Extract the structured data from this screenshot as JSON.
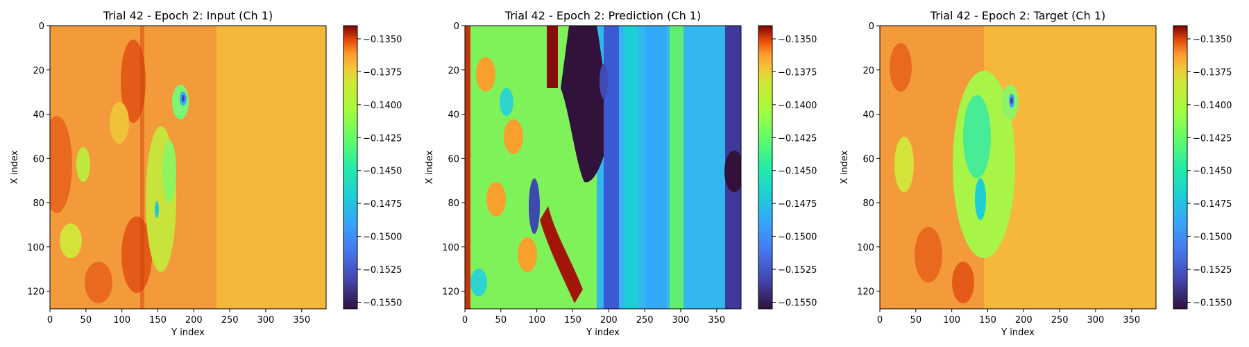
{
  "chart_data": [
    {
      "type": "heatmap",
      "title": "Trial 42 - Epoch 2: Input (Ch 1)",
      "xlabel": "Y index",
      "ylabel": "X index",
      "xlim": [
        0,
        384
      ],
      "ylim": [
        128,
        0
      ],
      "xticks": [
        "0",
        "50",
        "100",
        "150",
        "200",
        "250",
        "300",
        "350"
      ],
      "yticks": [
        "0",
        "20",
        "40",
        "60",
        "80",
        "100",
        "120"
      ],
      "colorbar": {
        "colormap": "turbo",
        "range": [
          -0.1555,
          -0.134
        ],
        "ticks": [
          "−0.1350",
          "−0.1375",
          "−0.1400",
          "−0.1425",
          "−0.1450",
          "−0.1475",
          "−0.1500",
          "−0.1525",
          "−0.1550"
        ]
      }
    },
    {
      "type": "heatmap",
      "title": "Trial 42 - Epoch 2: Prediction (Ch 1)",
      "xlabel": "Y index",
      "ylabel": "X index",
      "xlim": [
        0,
        384
      ],
      "ylim": [
        128,
        0
      ],
      "xticks": [
        "0",
        "50",
        "100",
        "150",
        "200",
        "250",
        "300",
        "350"
      ],
      "yticks": [
        "0",
        "20",
        "40",
        "60",
        "80",
        "100",
        "120"
      ],
      "colorbar": {
        "colormap": "turbo",
        "range": [
          -0.1555,
          -0.134
        ],
        "ticks": [
          "−0.1350",
          "−0.1375",
          "−0.1400",
          "−0.1425",
          "−0.1450",
          "−0.1475",
          "−0.1500",
          "−0.1525",
          "−0.1550"
        ]
      }
    },
    {
      "type": "heatmap",
      "title": "Trial 42 - Epoch 2: Target (Ch 1)",
      "xlabel": "Y index",
      "ylabel": "X index",
      "xlim": [
        0,
        384
      ],
      "ylim": [
        128,
        0
      ],
      "xticks": [
        "0",
        "50",
        "100",
        "150",
        "200",
        "250",
        "300",
        "350"
      ],
      "yticks": [
        "0",
        "20",
        "40",
        "60",
        "80",
        "100",
        "120"
      ],
      "colorbar": {
        "colormap": "turbo",
        "range": [
          -0.1555,
          -0.134
        ],
        "ticks": [
          "−0.1350",
          "−0.1375",
          "−0.1400",
          "−0.1425",
          "−0.1450",
          "−0.1475",
          "−0.1500",
          "−0.1525",
          "−0.1550"
        ]
      }
    }
  ]
}
